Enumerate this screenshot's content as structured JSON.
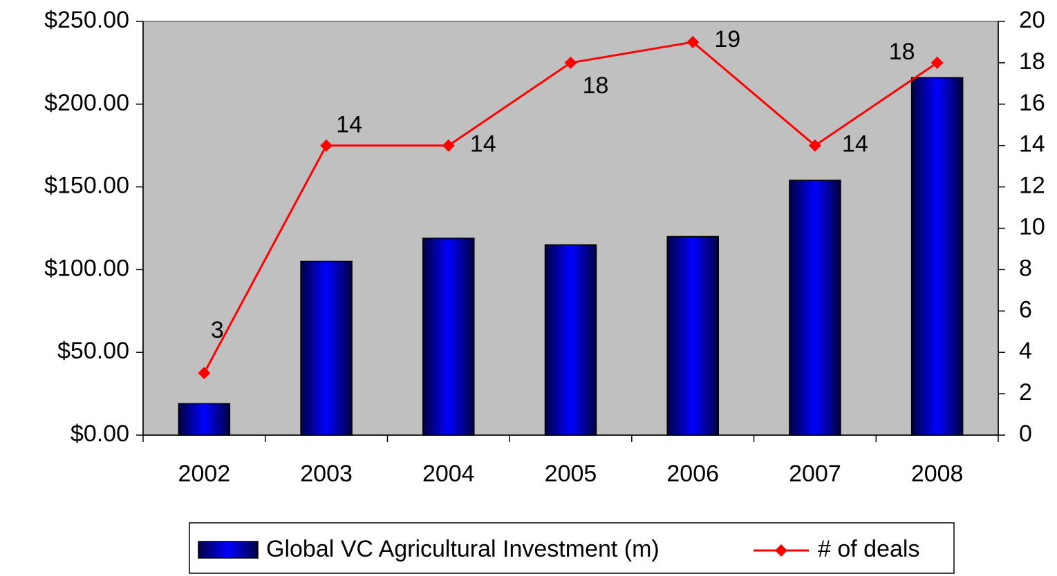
{
  "chart_data": {
    "type": "bar-line",
    "categories": [
      "2002",
      "2003",
      "2004",
      "2005",
      "2006",
      "2007",
      "2008"
    ],
    "series": [
      {
        "name": "Global VC Agricultural Investment (m)",
        "type": "bar",
        "color": "#0000ff",
        "values": [
          19,
          105,
          119,
          115,
          120,
          154,
          216
        ]
      },
      {
        "name": "# of deals",
        "type": "line",
        "axis": "y2",
        "color": "#ff0000",
        "values": [
          3,
          14,
          14,
          18,
          19,
          14,
          18
        ]
      }
    ],
    "ylim": [
      0,
      250
    ],
    "yticks": [
      {
        "value": 0,
        "label": "$0.00"
      },
      {
        "value": 50,
        "label": "$50.00"
      },
      {
        "value": 100,
        "label": "$100.00"
      },
      {
        "value": 150,
        "label": "$150.00"
      },
      {
        "value": 200,
        "label": "$200.00"
      },
      {
        "value": 250,
        "label": "$250.00"
      }
    ],
    "y2lim": [
      0,
      20
    ],
    "y2ticks": [
      0,
      2,
      4,
      6,
      8,
      10,
      12,
      14,
      16,
      18,
      20
    ],
    "legend": "bottom"
  }
}
